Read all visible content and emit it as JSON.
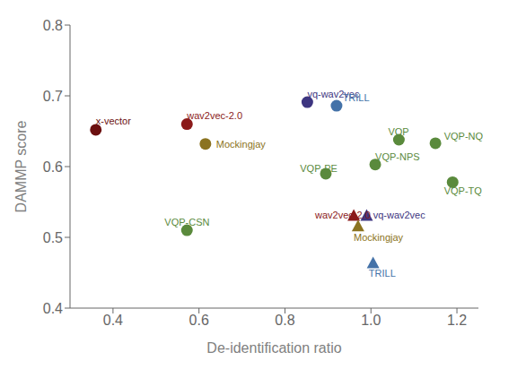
{
  "chart_data": {
    "type": "scatter",
    "xlabel": "De-identification ratio",
    "ylabel": "DAMMP score",
    "xlim": [
      0.3,
      1.25
    ],
    "ylim": [
      0.4,
      0.8
    ],
    "xticks": [
      0.4,
      0.6,
      0.8,
      {
        "value": 1.0,
        "label": "1.0"
      },
      1.2
    ],
    "yticks": [
      0.4,
      0.5,
      0.6,
      0.7,
      0.8
    ],
    "grid": false,
    "series": [
      {
        "marker": "circle",
        "x": [
          0.36,
          0.572,
          0.615,
          0.852,
          0.92,
          0.572,
          0.895,
          1.01,
          1.065,
          1.15,
          1.19
        ],
        "y": [
          0.652,
          0.66,
          0.632,
          0.691,
          0.686,
          0.51,
          0.59,
          0.603,
          0.638,
          0.633,
          0.578
        ],
        "colors": [
          "#6B0F0F",
          "#8B1A1A",
          "#8B7320",
          "#3D3580",
          "#4472A8",
          "#5A8A3C",
          "#5A8A3C",
          "#5A8A3C",
          "#5A8A3C",
          "#5A8A3C",
          "#5A8A3C"
        ]
      },
      {
        "marker": "triangle",
        "x": [
          0.96,
          0.99,
          0.97,
          1.005
        ],
        "y": [
          0.53,
          0.53,
          0.515,
          0.463
        ],
        "colors": [
          "#8B1A1A",
          "#3D3580",
          "#8B7320",
          "#4472A8"
        ]
      }
    ],
    "annotations": [
      {
        "text": "x-vector",
        "x": 0.36,
        "y": 0.665,
        "color": "#6B0F0F"
      },
      {
        "text": "wav2vec-2.0",
        "x": 0.572,
        "y": 0.672,
        "color": "#8B1A1A"
      },
      {
        "text": "Mockingjay",
        "x": 0.64,
        "y": 0.632,
        "color": "#8B7320"
      },
      {
        "text": "vq-wav2vec",
        "x": 0.852,
        "y": 0.703,
        "color": "#3D3580"
      },
      {
        "text": "TRILL",
        "x": 0.934,
        "y": 0.698,
        "color": "#4472A8"
      },
      {
        "text": "VQP-CSN",
        "x": 0.52,
        "y": 0.522,
        "color": "#5A8A3C"
      },
      {
        "text": "VQP-PE",
        "x": 0.835,
        "y": 0.598,
        "color": "#5A8A3C"
      },
      {
        "text": "VQP-NPS",
        "x": 1.01,
        "y": 0.614,
        "color": "#5A8A3C"
      },
      {
        "text": "VQP",
        "x": 1.04,
        "y": 0.65,
        "color": "#5A8A3C"
      },
      {
        "text": "VQP-NQ",
        "x": 1.17,
        "y": 0.643,
        "color": "#5A8A3C"
      },
      {
        "text": "VQP-TQ",
        "x": 1.17,
        "y": 0.566,
        "color": "#5A8A3C"
      },
      {
        "text": "wav2vec-2.0",
        "x": 0.87,
        "y": 0.532,
        "color": "#8B1A1A"
      },
      {
        "text": "vq-wav2vec",
        "x": 1.005,
        "y": 0.532,
        "color": "#3D3580"
      },
      {
        "text": "Mockingjay",
        "x": 0.96,
        "y": 0.5,
        "color": "#8B7320"
      },
      {
        "text": "TRILL",
        "x": 0.995,
        "y": 0.45,
        "color": "#4472A8"
      }
    ]
  }
}
